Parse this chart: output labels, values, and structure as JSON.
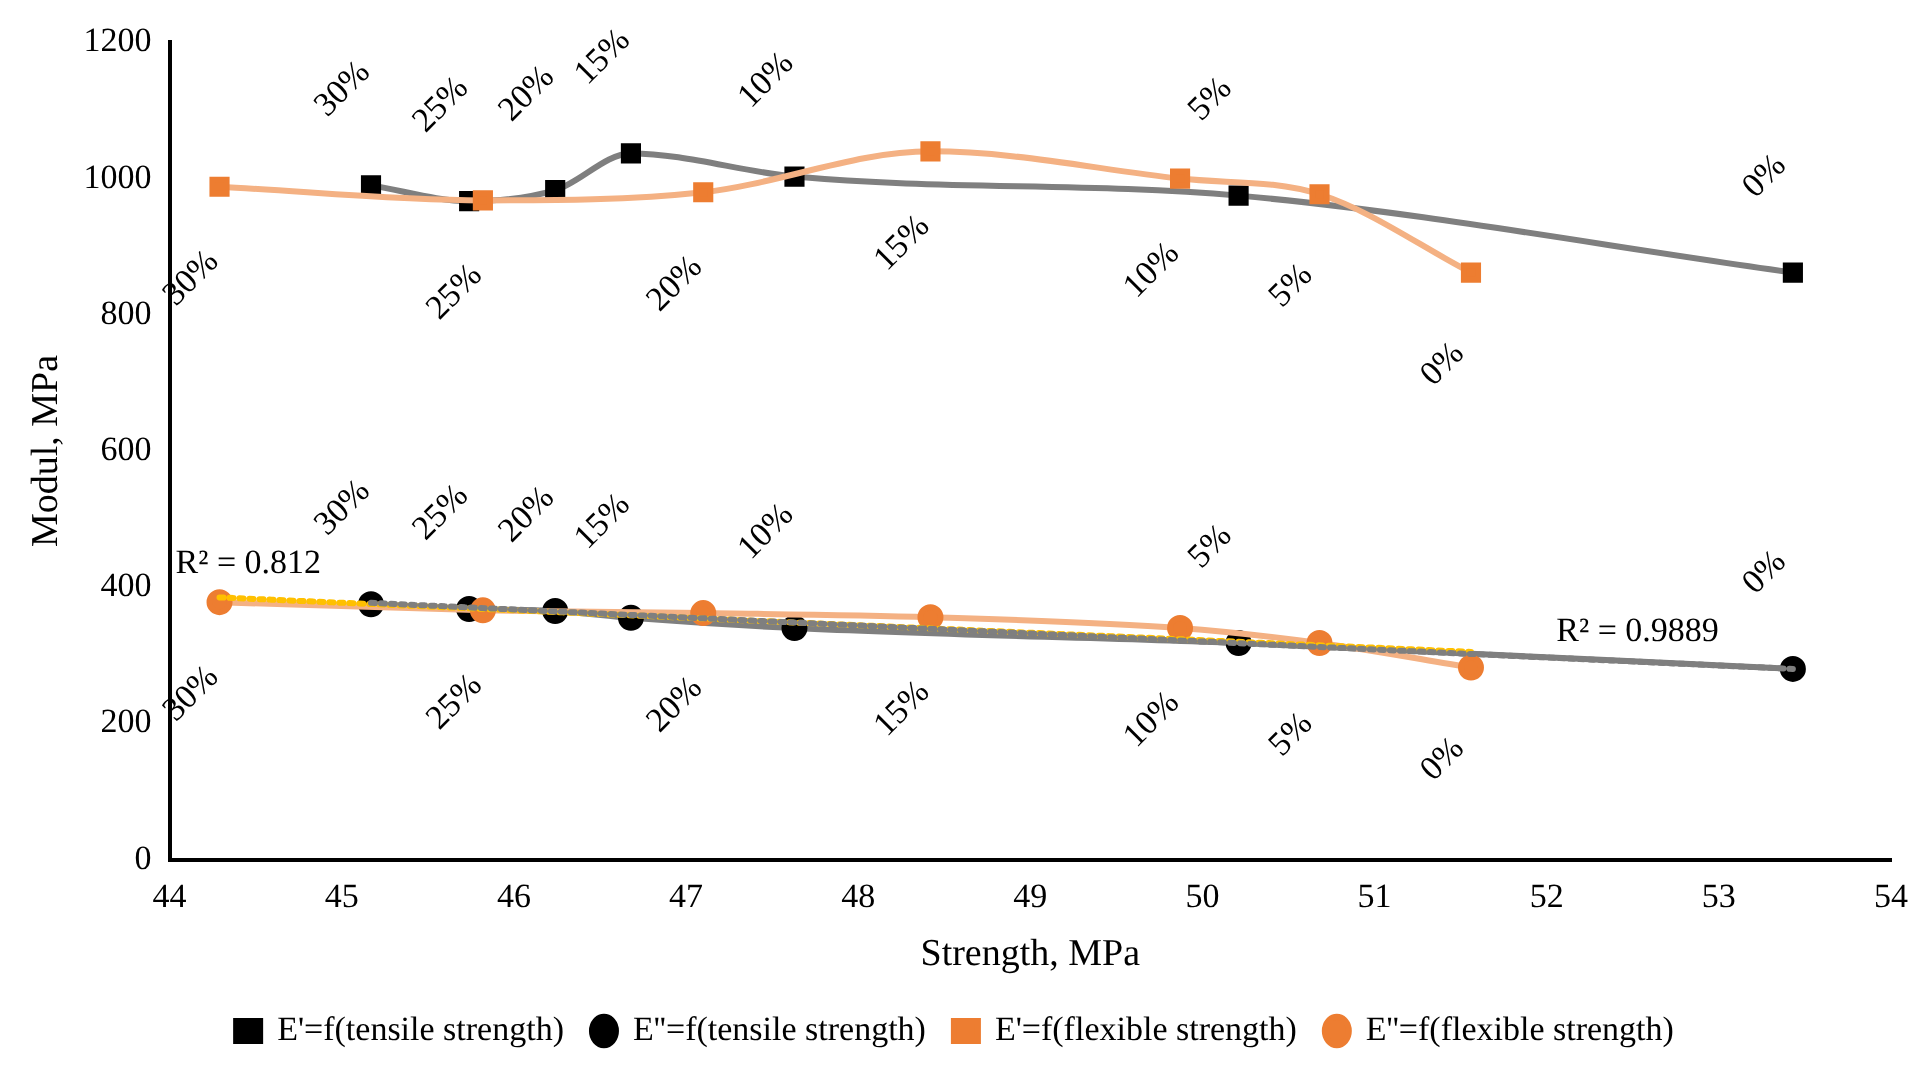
{
  "chart_data": {
    "type": "line",
    "xlabel": "Strength, MPa",
    "ylabel": "Modul, MPa",
    "xlim": [
      44,
      54
    ],
    "xticks": [
      44,
      45,
      46,
      47,
      48,
      49,
      50,
      51,
      52,
      53,
      54
    ],
    "ylim": [
      0,
      1200
    ],
    "yticks": [
      0,
      200,
      400,
      600,
      800,
      1000,
      1200
    ],
    "grid": false,
    "legend": "bottom",
    "series": [
      {
        "name": "E'=f(tensile strength)",
        "color": "#7f7f7f",
        "colors": [
          "#000000",
          "#000000",
          "#000000",
          "#000000",
          "#000000",
          "#000000",
          "#000000"
        ],
        "marker": "square",
        "x": [
          45.17,
          45.74,
          46.24,
          46.68,
          47.63,
          50.21,
          53.43
        ],
        "values": [
          990,
          967,
          983,
          1037,
          1003,
          975,
          862
        ]
      },
      {
        "name": "E''=f(tensile strength)",
        "color": "#7f7f7f",
        "colors": [
          "#000000",
          "#000000",
          "#000000",
          "#000000",
          "#000000",
          "#000000",
          "#000000"
        ],
        "marker": "circle",
        "x": [
          45.17,
          45.74,
          46.24,
          46.68,
          47.63,
          50.21,
          53.43
        ],
        "values": [
          375,
          368,
          365,
          355,
          340,
          318,
          280
        ]
      },
      {
        "name": "E'=f(flexible strength)",
        "color": "#f4b183",
        "colors": [
          "#ed7d31",
          "#ed7d31",
          "#ed7d31",
          "#ed7d31",
          "#ed7d31",
          "#ed7d31",
          "#ed7d31"
        ],
        "marker": "square",
        "x": [
          44.29,
          45.82,
          47.1,
          48.42,
          49.87,
          50.68,
          51.56
        ],
        "values": [
          988,
          968,
          980,
          1040,
          1000,
          977,
          862
        ]
      },
      {
        "name": "E''=f(flexible strength)",
        "color": "#f4b183",
        "colors": [
          "#ed7d31",
          "#ed7d31",
          "#ed7d31",
          "#ed7d31",
          "#ed7d31",
          "#ed7d31",
          "#ed7d31"
        ],
        "marker": "circle",
        "x": [
          44.29,
          45.82,
          47.1,
          48.42,
          49.87,
          50.68,
          51.56
        ],
        "values": [
          378,
          366,
          362,
          356,
          340,
          318,
          282
        ]
      },
      {
        "color": "#7f7f7f",
        "marker": "none",
        "line_style": "dotted",
        "x": [
          45.17,
          53.43
        ],
        "values": [
          377,
          280
        ]
      },
      {
        "color": "#ffc000",
        "marker": "none",
        "line_style": "dotted",
        "x": [
          44.29,
          51.56
        ],
        "values": [
          385,
          305
        ]
      }
    ],
    "annotations": [
      {
        "text": "R² = 0.812",
        "x": 44.29,
        "y": 385
      },
      {
        "text": "R² = 0.9889",
        "x": 53.0,
        "y": 285
      },
      {
        "text": "30%",
        "x": 45.17,
        "y": 990
      },
      {
        "text": "25%",
        "x": 45.74,
        "y": 967
      },
      {
        "text": "20%",
        "x": 46.24,
        "y": 983
      },
      {
        "text": "15%",
        "x": 46.68,
        "y": 1037
      },
      {
        "text": "10%",
        "x": 47.63,
        "y": 1003
      },
      {
        "text": "5%",
        "x": 50.21,
        "y": 975
      },
      {
        "text": "0%",
        "x": 53.43,
        "y": 862
      },
      {
        "text": "30%",
        "x": 45.17,
        "y": 375
      },
      {
        "text": "25%",
        "x": 45.74,
        "y": 368
      },
      {
        "text": "20%",
        "x": 46.24,
        "y": 365
      },
      {
        "text": "15%",
        "x": 46.68,
        "y": 355
      },
      {
        "text": "10%",
        "x": 47.63,
        "y": 340
      },
      {
        "text": "5%",
        "x": 50.21,
        "y": 318
      },
      {
        "text": "0%",
        "x": 53.43,
        "y": 280
      },
      {
        "text": "30%",
        "x": 44.29,
        "y": 988
      },
      {
        "text": "25%",
        "x": 45.82,
        "y": 968
      },
      {
        "text": "20%",
        "x": 47.1,
        "y": 980
      },
      {
        "text": "15%",
        "x": 48.42,
        "y": 1040
      },
      {
        "text": "10%",
        "x": 49.87,
        "y": 1000
      },
      {
        "text": "5%",
        "x": 50.68,
        "y": 977
      },
      {
        "text": "0%",
        "x": 51.56,
        "y": 862
      },
      {
        "text": "30%",
        "x": 44.29,
        "y": 378
      },
      {
        "text": "25%",
        "x": 45.82,
        "y": 366
      },
      {
        "text": "20%",
        "x": 47.1,
        "y": 362
      },
      {
        "text": "15%",
        "x": 48.42,
        "y": 356
      },
      {
        "text": "10%",
        "x": 49.87,
        "y": 340
      },
      {
        "text": "5%",
        "x": 50.68,
        "y": 318
      },
      {
        "text": "0%",
        "x": 51.56,
        "y": 282
      }
    ]
  }
}
